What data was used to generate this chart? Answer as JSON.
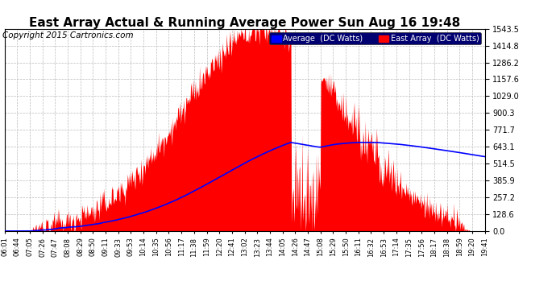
{
  "title": "East Array Actual & Running Average Power Sun Aug 16 19:48",
  "copyright": "Copyright 2015 Cartronics.com",
  "yticks": [
    0.0,
    128.6,
    257.2,
    385.9,
    514.5,
    643.1,
    771.7,
    900.3,
    1029.0,
    1157.6,
    1286.2,
    1414.8,
    1543.5
  ],
  "ymax": 1543.5,
  "ymin": 0.0,
  "bar_color": "#ff0000",
  "avg_color": "#0000ff",
  "background_color": "#ffffff",
  "plot_bg_color": "#ffffff",
  "grid_color": "#aaaaaa",
  "legend_avg_bg": "#0000ff",
  "legend_east_bg": "#ff0000",
  "legend_avg_text": "Average  (DC Watts)",
  "legend_east_text": "East Array  (DC Watts)",
  "title_fontsize": 11,
  "copyright_fontsize": 7.5,
  "xtick_labels": [
    "06:01",
    "06:44",
    "07:05",
    "07:26",
    "07:47",
    "08:08",
    "08:29",
    "08:50",
    "09:11",
    "09:33",
    "09:53",
    "10:14",
    "10:35",
    "10:56",
    "11:17",
    "11:38",
    "11:59",
    "12:20",
    "12:41",
    "13:02",
    "13:23",
    "13:44",
    "14:05",
    "14:26",
    "14:47",
    "15:08",
    "15:29",
    "15:50",
    "16:11",
    "16:32",
    "16:53",
    "17:14",
    "17:35",
    "17:56",
    "18:17",
    "18:38",
    "18:59",
    "19:20",
    "19:41"
  ]
}
